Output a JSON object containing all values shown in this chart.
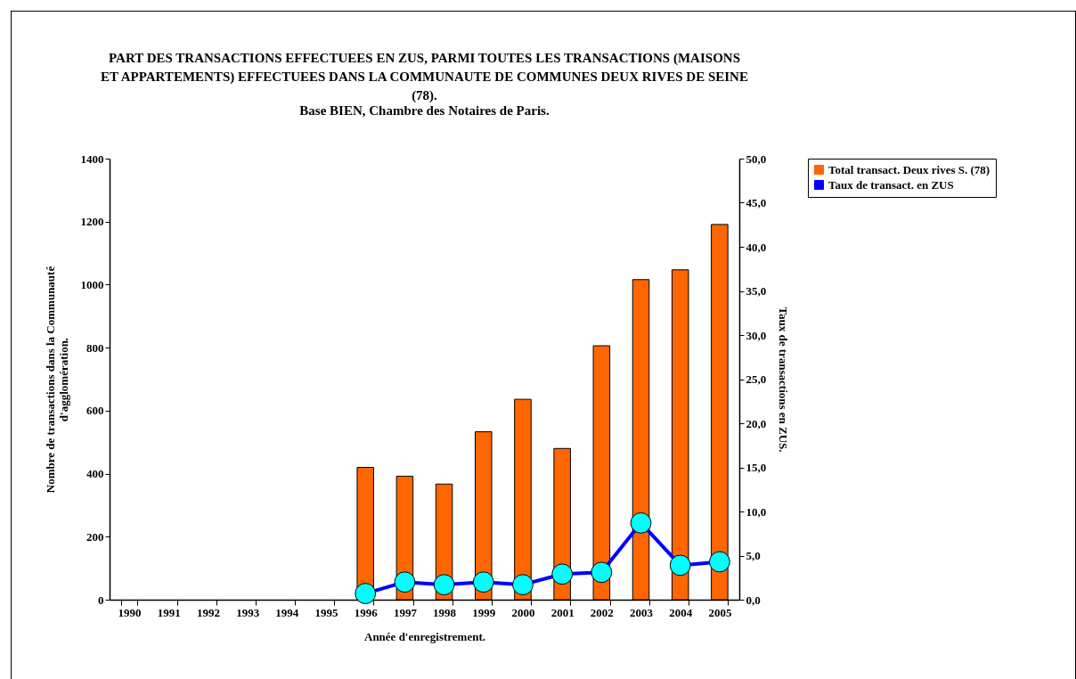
{
  "chart_data": {
    "type": "bar",
    "title": "PART DES TRANSACTIONS EFFECTUEES EN ZUS, PARMI TOUTES LES TRANSACTIONS (MAISONS ET APPARTEMENTS) EFFECTUEES DANS LA COMMUNAUTE DE COMMUNES DEUX RIVES DE SEINE (78).",
    "subtitle": "Base BIEN, Chambre des Notaires de Paris.",
    "xlabel": "Année d'enregistrement.",
    "ylabel": "Nombre de transactions dans la Communauté d'agglomération.",
    "y2label": "Taux de transactions en ZUS.",
    "categories": [
      "1990",
      "1991",
      "1992",
      "1993",
      "1994",
      "1995",
      "1996",
      "1997",
      "1998",
      "1999",
      "2000",
      "2001",
      "2002",
      "2003",
      "2004",
      "2005"
    ],
    "series": [
      {
        "name": "Total transact. Deux rives S. (78)",
        "color": "#ff6600",
        "values": [
          null,
          null,
          null,
          null,
          null,
          null,
          420,
          392,
          367,
          533,
          636,
          480,
          806,
          1016,
          1047,
          1191
        ]
      },
      {
        "name": "Taux de transact. en ZUS",
        "type": "line",
        "axis": "y2",
        "color": "#0000ff",
        "values": [
          null,
          null,
          null,
          null,
          null,
          null,
          0.7,
          2.0,
          1.7,
          2.0,
          1.7,
          2.9,
          3.1,
          8.7,
          3.9,
          4.3
        ]
      }
    ],
    "ylim": [
      0,
      1400
    ],
    "yticks": [
      0,
      200,
      400,
      600,
      800,
      1000,
      1200,
      1400
    ],
    "y2lim": [
      0,
      50
    ],
    "y2ticks": [
      {
        "value": 0,
        "label": "0,0"
      },
      {
        "value": 5,
        "label": "5,0"
      },
      {
        "value": 10,
        "label": "10,0"
      },
      {
        "value": 15,
        "label": "15,0"
      },
      {
        "value": 20,
        "label": "20,0"
      },
      {
        "value": 25,
        "label": "25,0"
      },
      {
        "value": 30,
        "label": "30,0"
      },
      {
        "value": 35,
        "label": "35,0"
      },
      {
        "value": 40,
        "label": "40,0"
      },
      {
        "value": 45,
        "label": "45,0"
      },
      {
        "value": 50,
        "label": "50,0"
      }
    ],
    "legend": "right",
    "marker": "circle",
    "grid": false
  }
}
